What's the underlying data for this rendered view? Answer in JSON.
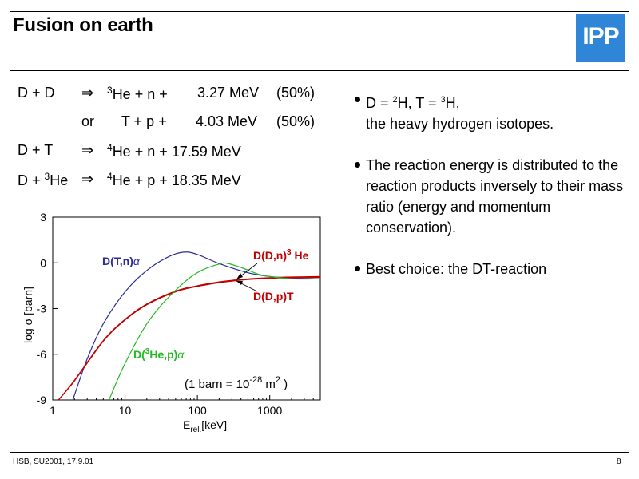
{
  "title": "Fusion on earth",
  "logo": "IPP",
  "reactions": [
    {
      "lhs": "D +  D",
      "arrow": "⇒",
      "mass": "3",
      "product": "He + n +",
      "energy": "3.27 MeV",
      "share": "(50%)"
    },
    {
      "lhs": "or",
      "product": "T  + p +",
      "energy": "4.03 MeV",
      "share": "(50%)"
    },
    {
      "lhs": "D +  T",
      "arrow": "⇒",
      "mass": "4",
      "product": "He + n + 17.59 MeV"
    },
    {
      "lhs_prefix": "D + ",
      "lhs_mass": "3",
      "lhs_suffix": "He",
      "arrow": "⇒",
      "mass": "4",
      "product": "He + p + 18.35 MeV"
    }
  ],
  "bullets": {
    "b1_d": "D = ",
    "b1_d_mass": "2",
    "b1_h": "H,  T = ",
    "b1_t_mass": "3",
    "b1_h2": "H,",
    "b1_line2": "the heavy hydrogen isotopes.",
    "b2": "The reaction energy is distributed to the reaction products inversely to their mass ratio (energy and momentum conservation).",
    "b3": "Best choice: the DT-reaction"
  },
  "chart_data": {
    "type": "line",
    "xscale": "log",
    "xlim": [
      1,
      5000
    ],
    "ylim": [
      -9,
      3
    ],
    "xticks": [
      1,
      10,
      100,
      1000
    ],
    "xtick_labels": [
      "1",
      "10",
      "100",
      "1000"
    ],
    "yticks": [
      3,
      0,
      -3,
      -6,
      -9
    ],
    "ytick_labels": [
      "3",
      "0",
      "-3",
      "-6",
      "-9"
    ],
    "xlabel": "E",
    "xlabel_sub": "rel.",
    "xlabel_unit": "[keV]",
    "ylabel": "log  σ  [barn]",
    "annotation": {
      "prefix": "(1 barn = 10",
      "exp": "-28",
      "mid": " m",
      "exp2": "2",
      "suffix": " )"
    },
    "series": [
      {
        "name": "D(T,n)α",
        "label_main": "D(T,n)",
        "label_greek": "α",
        "color": "#2b2b9a",
        "x": [
          1.9,
          3,
          5,
          10,
          20,
          40,
          65,
          100,
          200,
          500,
          1000,
          2000,
          5000
        ],
        "y": [
          -9,
          -6.3,
          -4.0,
          -1.9,
          -0.5,
          0.4,
          0.7,
          0.55,
          -0.05,
          -0.65,
          -0.9,
          -1.0,
          -1.05
        ]
      },
      {
        "name": "D(D,n)3He",
        "label_pre": "D(D,n)",
        "label_sup": "3",
        "label_post": " He",
        "color": "#c00000",
        "x": [
          1.2,
          2,
          5,
          10,
          20,
          50,
          100,
          200,
          300,
          500,
          1000,
          2000,
          5000
        ],
        "y": [
          -9,
          -7.7,
          -5.1,
          -3.7,
          -2.7,
          -1.85,
          -1.5,
          -1.25,
          -1.15,
          -1.05,
          -0.97,
          -0.93,
          -0.9
        ]
      },
      {
        "name": "D(D,p)T",
        "label_main": "D(D,p)T",
        "color": "#c00000",
        "x": [
          1.2,
          2,
          5,
          10,
          20,
          50,
          100,
          200,
          300,
          500,
          1000,
          2000,
          5000
        ],
        "y": [
          -9,
          -7.75,
          -5.15,
          -3.75,
          -2.75,
          -1.9,
          -1.55,
          -1.3,
          -1.2,
          -1.1,
          -1.02,
          -0.98,
          -0.95
        ]
      },
      {
        "name": "D(3He,p)α",
        "label_pre": "D(",
        "label_sup": "3",
        "label_post": "He,p)",
        "label_greek": "α",
        "color": "#22bb22",
        "x": [
          6,
          8,
          10,
          15,
          20,
          30,
          50,
          80,
          120,
          200,
          250,
          400,
          700,
          1000,
          2000,
          5000
        ],
        "y": [
          -9,
          -7.6,
          -6.6,
          -5.0,
          -4.0,
          -2.9,
          -1.8,
          -0.95,
          -0.45,
          -0.08,
          -0.02,
          -0.3,
          -0.75,
          -0.9,
          -1.05,
          -1.05
        ]
      }
    ]
  },
  "footer": {
    "left": "HSB, SU2001, 17.9.01",
    "page": "8"
  }
}
